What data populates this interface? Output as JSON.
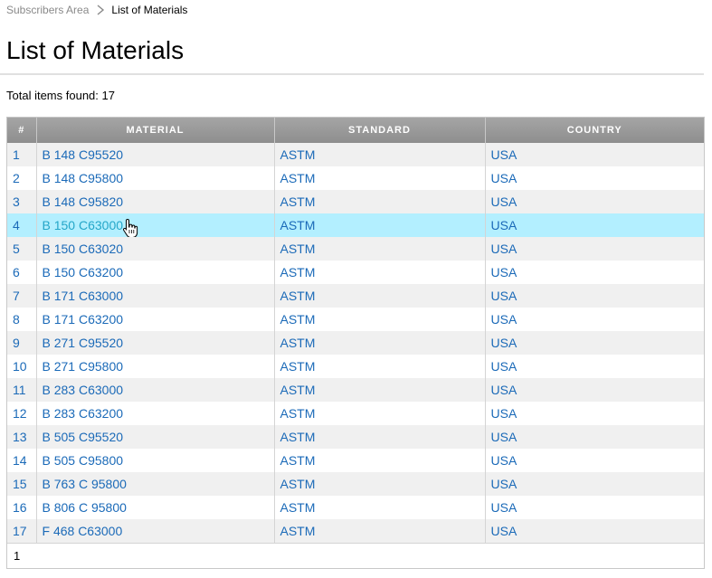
{
  "breadcrumb": {
    "parent": "Subscribers Area",
    "current": "List of Materials"
  },
  "page": {
    "title": "List of Materials",
    "total_label": "Total items found: 17"
  },
  "table": {
    "columns": [
      "#",
      "MATERIAL",
      "STANDARD",
      "COUNTRY"
    ],
    "hover_row": 4,
    "rows": [
      {
        "num": "1",
        "material": "B 148 C95520",
        "standard": "ASTM",
        "country": "USA"
      },
      {
        "num": "2",
        "material": "B 148 C95800",
        "standard": "ASTM",
        "country": "USA"
      },
      {
        "num": "3",
        "material": "B 148 C95820",
        "standard": "ASTM",
        "country": "USA"
      },
      {
        "num": "4",
        "material": "B 150 C63000",
        "standard": "ASTM",
        "country": "USA"
      },
      {
        "num": "5",
        "material": "B 150 C63020",
        "standard": "ASTM",
        "country": "USA"
      },
      {
        "num": "6",
        "material": "B 150 C63200",
        "standard": "ASTM",
        "country": "USA"
      },
      {
        "num": "7",
        "material": "B 171 C63000",
        "standard": "ASTM",
        "country": "USA"
      },
      {
        "num": "8",
        "material": "B 171 C63200",
        "standard": "ASTM",
        "country": "USA"
      },
      {
        "num": "9",
        "material": "B 271 C95520",
        "standard": "ASTM",
        "country": "USA"
      },
      {
        "num": "10",
        "material": "B 271 C95800",
        "standard": "ASTM",
        "country": "USA"
      },
      {
        "num": "11",
        "material": "B 283 C63000",
        "standard": "ASTM",
        "country": "USA"
      },
      {
        "num": "12",
        "material": "B 283 C63200",
        "standard": "ASTM",
        "country": "USA"
      },
      {
        "num": "13",
        "material": "B 505 C95520",
        "standard": "ASTM",
        "country": "USA"
      },
      {
        "num": "14",
        "material": "B 505 C95800",
        "standard": "ASTM",
        "country": "USA"
      },
      {
        "num": "15",
        "material": "B 763 C 95800",
        "standard": "ASTM",
        "country": "USA"
      },
      {
        "num": "16",
        "material": "B 806 C 95800",
        "standard": "ASTM",
        "country": "USA"
      },
      {
        "num": "17",
        "material": "F 468 C63000",
        "standard": "ASTM",
        "country": "USA"
      }
    ]
  },
  "pager": {
    "current_page": "1"
  },
  "icons": {
    "separator": "chevron-right-icon",
    "pointer": "hand-cursor-icon"
  },
  "colors": {
    "link": "#1b6ab8",
    "hover_row": "#b3efff",
    "header_bg": "#999999"
  }
}
